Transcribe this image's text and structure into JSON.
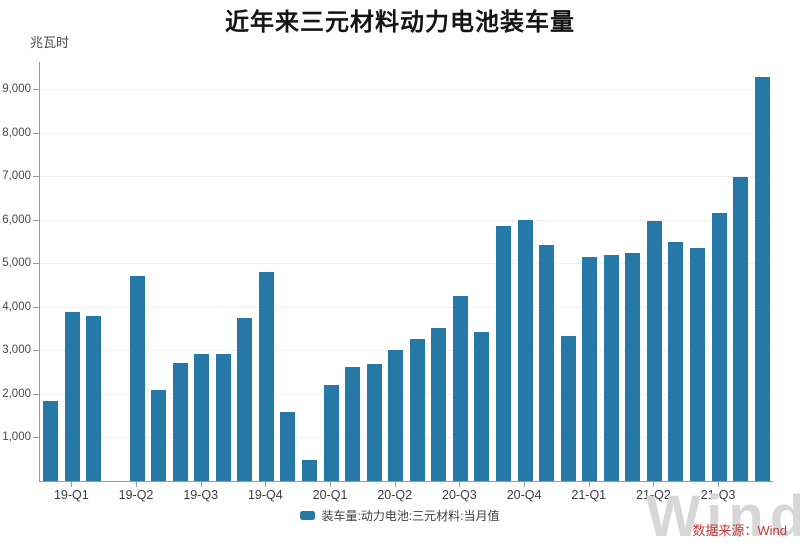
{
  "title": "近年来三元材料动力电池装车量",
  "y_unit_label": "兆瓦时",
  "legend": {
    "label": "装车量:动力电池:三元材料:当月值"
  },
  "source_note": "数据来源：Wind",
  "watermark": "Wind",
  "colors": {
    "bar": "#2679a6",
    "source_text": "#c03b3b",
    "watermark": "#d7d7d7",
    "axis": "#9a9a9a",
    "gridline": "#e4e4e4"
  },
  "chart_data": {
    "type": "bar",
    "title": "近年来三元材料动力电池装车量",
    "xlabel": "",
    "ylabel": "兆瓦时",
    "unit": "MWh (兆瓦时)",
    "grid": true,
    "legend_position": "bottom",
    "legend_entries": [
      "装车量:动力电池:三元材料:当月值"
    ],
    "ylim": [
      0,
      9630
    ],
    "yticks": [
      1000,
      2000,
      3000,
      4000,
      5000,
      6000,
      7000,
      8000,
      9000
    ],
    "x": [
      "2019-02",
      "2019-03",
      "2019-04",
      "2019-05",
      "2019-06",
      "2019-07",
      "2019-08",
      "2019-09",
      "2019-10",
      "2019-11",
      "2019-12",
      "2020-01",
      "2020-02",
      "2020-03",
      "2020-04",
      "2020-05",
      "2020-06",
      "2020-07",
      "2020-08",
      "2020-09",
      "2020-10",
      "2020-11",
      "2020-12",
      "2021-01",
      "2021-02",
      "2021-03",
      "2021-04",
      "2021-05",
      "2021-06",
      "2021-07",
      "2021-08",
      "2021-09",
      "2021-10",
      "2021-11"
    ],
    "values": [
      1850,
      3890,
      3800,
      null,
      4710,
      2100,
      2710,
      2910,
      2930,
      3750,
      4810,
      1580,
      490,
      2210,
      2620,
      2680,
      3000,
      3260,
      3510,
      4250,
      3420,
      5870,
      6000,
      5420,
      3330,
      5140,
      5200,
      5230,
      5980,
      5490,
      5360,
      6170,
      6990,
      9280
    ],
    "note_missing": "2019-05 has no bar (missing value)",
    "xtick_labels": [
      "19-Q1",
      "19-Q2",
      "19-Q3",
      "19-Q4",
      "20-Q1",
      "20-Q2",
      "20-Q3",
      "20-Q4",
      "21-Q1",
      "21-Q2",
      "21-Q3"
    ],
    "xtick_positions": [
      1,
      4,
      7,
      10,
      13,
      16,
      19,
      22,
      25,
      28,
      31
    ]
  }
}
